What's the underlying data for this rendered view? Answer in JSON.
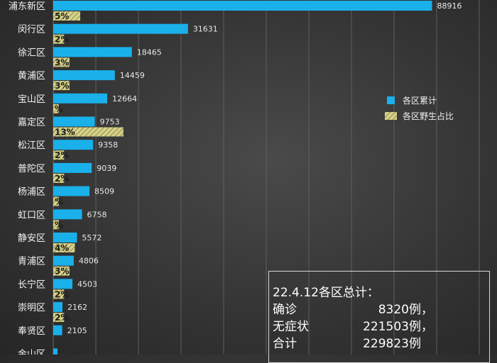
{
  "chart_data": {
    "type": "bar",
    "orientation": "horizontal",
    "categories": [
      "浦东新区",
      "闵行区",
      "徐汇区",
      "黄浦区",
      "宝山区",
      "嘉定区",
      "松江区",
      "普陀区",
      "杨浦区",
      "虹口区",
      "静安区",
      "青浦区",
      "长宁区",
      "崇明区",
      "奉贤区",
      "金山区"
    ],
    "series": [
      {
        "name": "各区累计",
        "color": "#1ab0ea",
        "values": [
          88916,
          31631,
          18465,
          14459,
          12664,
          9753,
          9358,
          9039,
          8509,
          6758,
          5572,
          4806,
          4503,
          2162,
          2105,
          1000
        ],
        "labels": [
          "88916",
          "31631",
          "18465",
          "14459",
          "12664",
          "9753",
          "9358",
          "9039",
          "8509",
          "6758",
          "5572",
          "4806",
          "4503",
          "2162",
          "2105",
          ""
        ]
      },
      {
        "name": "各区野生占比",
        "color": "#c8c47a",
        "values": [
          5,
          2,
          3,
          3,
          1,
          13,
          2,
          2,
          1,
          1,
          4,
          3,
          2,
          2,
          0,
          0
        ],
        "labels": [
          "5%",
          "2%",
          "3%",
          "3%",
          "%",
          "13%",
          "2%",
          "2%",
          "%",
          "%",
          "4%",
          "3%",
          "2%",
          "2%",
          "",
          ""
        ]
      }
    ],
    "xlim": [
      0,
      100000
    ],
    "grid": true,
    "legend": "right",
    "title": "",
    "xlabel": "",
    "ylabel": ""
  },
  "summary": {
    "title": "22.4.12各区总计：",
    "rows": [
      {
        "key": "确诊",
        "value": "8320",
        "unit": "例，"
      },
      {
        "key": "无症状",
        "value": "221503",
        "unit": "例，"
      },
      {
        "key": "合计",
        "value": "229823",
        "unit": "例"
      }
    ]
  }
}
